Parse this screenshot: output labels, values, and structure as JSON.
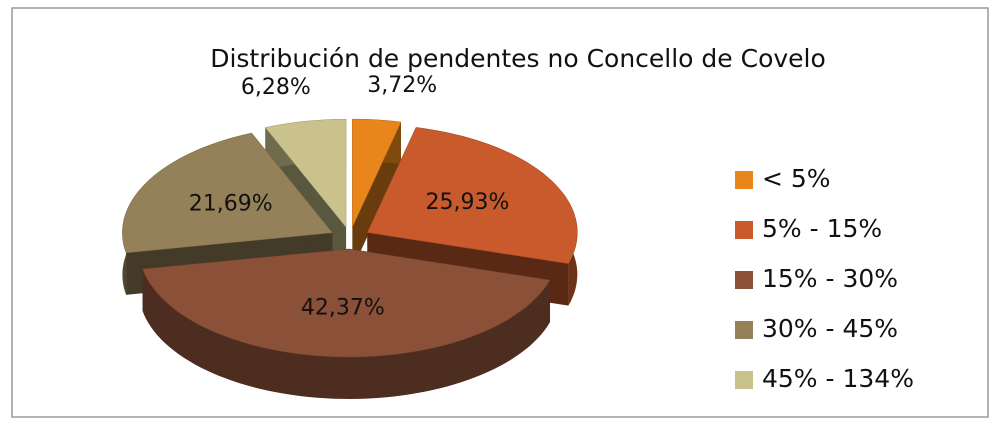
{
  "chart_data": {
    "type": "pie",
    "title": "Distribución de pendentes no Concello de Covelo",
    "categories": [
      "< 5%",
      "5% - 15%",
      "15% - 30%",
      "30% - 45%",
      "45% - 134%"
    ],
    "values": [
      3.72,
      25.93,
      42.37,
      21.69,
      6.28
    ],
    "value_labels": [
      "3,72%",
      "25,93%",
      "42,37%",
      "21,69%",
      "6,28%"
    ],
    "colors": [
      "#e8861c",
      "#c85a2c",
      "#8b5138",
      "#948159",
      "#c9c28c"
    ],
    "legend": "right"
  }
}
